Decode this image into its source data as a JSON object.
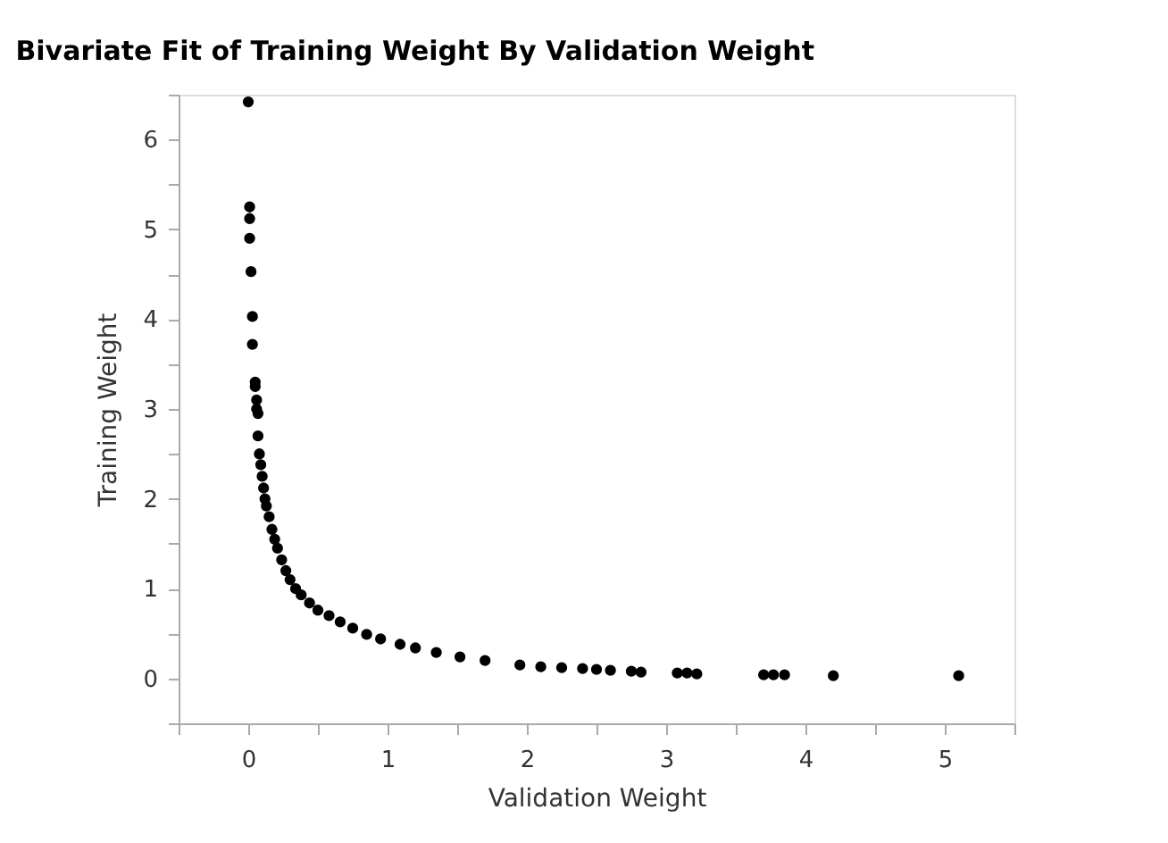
{
  "chart_data": {
    "type": "scatter",
    "title": "Bivariate Fit of Training Weight By Validation Weight",
    "xlabel": "Validation Weight",
    "ylabel": "Training Weight",
    "x": [
      0.0,
      0.01,
      0.01,
      0.01,
      0.02,
      0.03,
      0.03,
      0.05,
      0.05,
      0.06,
      0.06,
      0.07,
      0.07,
      0.08,
      0.09,
      0.1,
      0.11,
      0.12,
      0.13,
      0.15,
      0.17,
      0.19,
      0.21,
      0.24,
      0.27,
      0.3,
      0.34,
      0.38,
      0.44,
      0.5,
      0.58,
      0.66,
      0.75,
      0.85,
      0.95,
      1.09,
      1.2,
      1.35,
      1.52,
      1.7,
      1.95,
      2.1,
      2.25,
      2.4,
      2.5,
      2.6,
      2.75,
      2.82,
      3.08,
      3.15,
      3.22,
      3.7,
      3.77,
      3.85,
      4.2,
      5.1
    ],
    "values": [
      6.42,
      5.25,
      5.12,
      4.9,
      4.53,
      4.03,
      3.72,
      3.3,
      3.25,
      3.1,
      3.0,
      2.95,
      2.7,
      2.5,
      2.38,
      2.25,
      2.12,
      2.0,
      1.92,
      1.8,
      1.66,
      1.55,
      1.45,
      1.32,
      1.2,
      1.1,
      1.0,
      0.93,
      0.84,
      0.76,
      0.7,
      0.63,
      0.56,
      0.49,
      0.44,
      0.38,
      0.34,
      0.29,
      0.24,
      0.2,
      0.15,
      0.13,
      0.12,
      0.11,
      0.1,
      0.09,
      0.08,
      0.07,
      0.06,
      0.06,
      0.05,
      0.04,
      0.04,
      0.04,
      0.03,
      0.03
    ],
    "color": "#000000",
    "marker": "circle",
    "grid": false,
    "xlim": [
      -0.5,
      5.5
    ],
    "ylim": [
      -0.5,
      6.5
    ],
    "xticks": [
      {
        "value": -0.5,
        "label": null
      },
      0,
      {
        "value": 0.5,
        "label": null
      },
      1,
      {
        "value": 1.5,
        "label": null
      },
      2,
      {
        "value": 2.5,
        "label": null
      },
      3,
      {
        "value": 3.5,
        "label": null
      },
      4,
      {
        "value": 4.5,
        "label": null
      },
      5,
      {
        "value": 5.5,
        "label": null
      }
    ],
    "yticks": [
      {
        "value": -0.5,
        "label": null
      },
      0,
      {
        "value": 0.5,
        "label": null
      },
      1,
      {
        "value": 1.5,
        "label": null
      },
      2,
      {
        "value": 2.5,
        "label": null
      },
      3,
      {
        "value": 3.5,
        "label": null
      },
      4,
      {
        "value": 4.5,
        "label": null
      },
      5,
      {
        "value": 5.5,
        "label": null
      },
      6,
      {
        "value": 6.5,
        "label": null
      }
    ]
  }
}
